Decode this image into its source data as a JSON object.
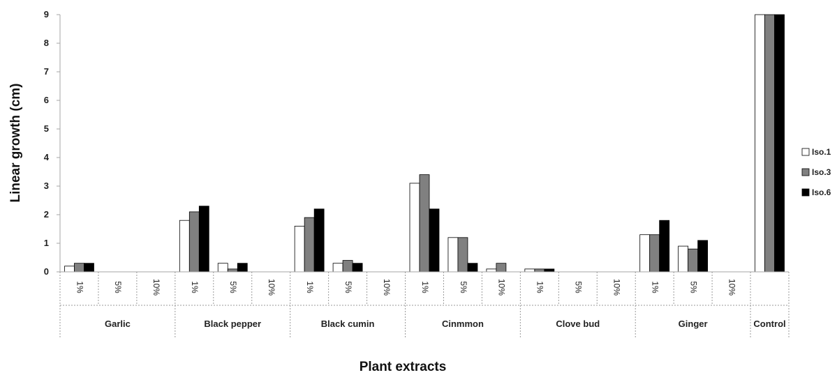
{
  "chart_data": {
    "type": "bar",
    "ylabel": "Linear growth (cm)",
    "xlabel": "Plant extracts",
    "ylim": [
      0,
      9
    ],
    "yticks": [
      0,
      1,
      2,
      3,
      4,
      5,
      6,
      7,
      8,
      9
    ],
    "grid": false,
    "legend_position": "right",
    "groups": [
      {
        "name": "Garlic",
        "subcategories": [
          "1%",
          "5%",
          "10%"
        ]
      },
      {
        "name": "Black pepper",
        "subcategories": [
          "1%",
          "5%",
          "10%"
        ]
      },
      {
        "name": "Black cumin",
        "subcategories": [
          "1%",
          "5%",
          "10%"
        ]
      },
      {
        "name": "Cinmmon",
        "subcategories": [
          "1%",
          "5%",
          "10%"
        ]
      },
      {
        "name": "Clove bud",
        "subcategories": [
          "1%",
          "5%",
          "10%"
        ]
      },
      {
        "name": "Ginger",
        "subcategories": [
          "1%",
          "5%",
          "10%"
        ]
      },
      {
        "name": "Control",
        "subcategories": [
          ""
        ]
      }
    ],
    "series": [
      {
        "name": "Iso.1",
        "color": "#ffffff",
        "values": [
          0.2,
          0,
          0,
          1.8,
          0.3,
          0,
          1.6,
          0.3,
          0,
          3.1,
          1.2,
          0.1,
          0.1,
          0,
          0,
          1.3,
          0.9,
          0,
          9
        ]
      },
      {
        "name": "Iso.3",
        "color": "#808080",
        "values": [
          0.3,
          0,
          0,
          2.1,
          0.1,
          0,
          1.9,
          0.4,
          0,
          3.4,
          1.2,
          0.3,
          0.1,
          0,
          0,
          1.3,
          0.8,
          0,
          9
        ]
      },
      {
        "name": "Iso.6",
        "color": "#000000",
        "values": [
          0.3,
          0,
          0,
          2.3,
          0.3,
          0,
          2.2,
          0.3,
          0,
          2.2,
          0.3,
          0,
          0.1,
          0,
          0,
          1.8,
          1.1,
          0,
          9
        ]
      }
    ]
  }
}
